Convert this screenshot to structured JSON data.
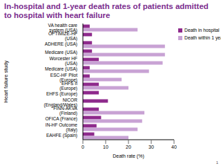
{
  "chart_data": {
    "type": "bar",
    "orientation": "horizontal",
    "title": "In-hospital and 1-year death rates of patients admitted to hospital with heart failure",
    "x_label": "Death rate (%)",
    "y_label": "Heart failure study",
    "categories": [
      "VA health care system (USA)",
      "OPTIMIZE-HF (USA)",
      "ADHERE (USA)",
      "Medicare (USA)",
      "Worcester HF (USA)",
      "Medicare (USA)",
      "ESC-HF Pilot (Europe)",
      "EHFS II (Europe)",
      "EHFS (Europe)",
      "NICOR (England/Wales)",
      "FINN-AKVA (Finland)",
      "OFICA (France)",
      "IN-HF Outcome (Italy)",
      "EAHFE (Spain)"
    ],
    "series": [
      {
        "name": "Death in hospital",
        "color": "#8e2a8c",
        "values": [
          3,
          4,
          4,
          4,
          7,
          3,
          3,
          7,
          7,
          11,
          7,
          8,
          6,
          5
        ]
      },
      {
        "name": "Death within 1 year",
        "color": "#c8a2d4",
        "values": [
          24,
          null,
          36,
          36,
          35,
          29,
          17,
          20,
          null,
          null,
          27,
          26,
          24,
          20
        ]
      }
    ],
    "xlim": [
      0,
      40
    ],
    "xticks": [
      0,
      10,
      20,
      30,
      40
    ],
    "grid": false,
    "legend": "upper right",
    "annotations": [
      "1"
    ]
  }
}
